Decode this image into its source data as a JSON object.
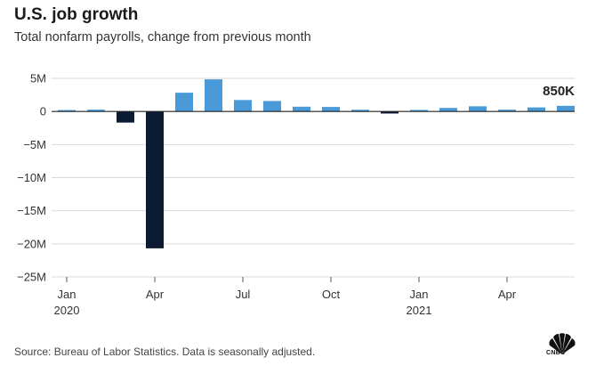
{
  "header": {
    "title": "U.S. job growth",
    "subtitle": "Total nonfarm payrolls, change from previous month"
  },
  "footer": {
    "source": "Source: Bureau of Labor Statistics. Data is seasonally adjusted.",
    "logo_text": "CNBC"
  },
  "chart_data": {
    "type": "bar",
    "title": "U.S. job growth",
    "subtitle": "Total nonfarm payrolls, change from previous month",
    "categories": [
      "Jan 2020",
      "Feb 2020",
      "Mar 2020",
      "Apr 2020",
      "May 2020",
      "Jun 2020",
      "Jul 2020",
      "Aug 2020",
      "Sep 2020",
      "Oct 2020",
      "Nov 2020",
      "Dec 2020",
      "Jan 2021",
      "Feb 2021",
      "Mar 2021",
      "Apr 2021",
      "May 2021",
      "Jun 2021"
    ],
    "values": [
      0.21,
      0.27,
      -1.68,
      -20.68,
      2.83,
      4.85,
      1.73,
      1.58,
      0.72,
      0.68,
      0.26,
      -0.31,
      0.23,
      0.54,
      0.78,
      0.27,
      0.61,
      0.85
    ],
    "unit": "M",
    "ylim": [
      -25,
      5
    ],
    "yticks": [
      5,
      0,
      -5,
      -10,
      -15,
      -20,
      -25
    ],
    "ytick_labels": [
      "5M",
      "0",
      "−5M",
      "−10M",
      "−15M",
      "−20M",
      "−25M"
    ],
    "xticks": [
      {
        "index": 0,
        "label": "Jan",
        "year": "2020"
      },
      {
        "index": 3,
        "label": "Apr",
        "year": ""
      },
      {
        "index": 6,
        "label": "Jul",
        "year": ""
      },
      {
        "index": 9,
        "label": "Oct",
        "year": ""
      },
      {
        "index": 12,
        "label": "Jan",
        "year": "2021"
      },
      {
        "index": 15,
        "label": "Apr",
        "year": ""
      }
    ],
    "annotation": {
      "index": 17,
      "text": "850K"
    },
    "colors": {
      "positive": "#4a9ad8",
      "negative": "#0c1b34",
      "grid": "#d9d9d9",
      "zero_line": "#222222"
    },
    "grid": true,
    "legend": "none"
  }
}
